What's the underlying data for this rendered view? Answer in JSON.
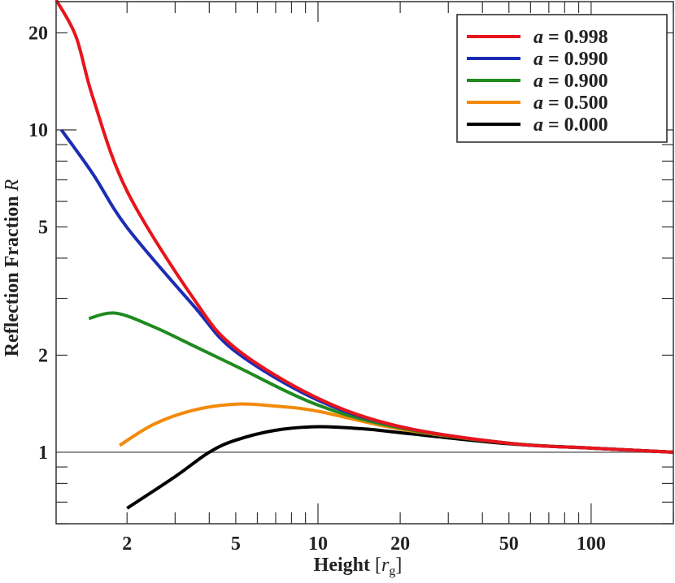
{
  "chart_data": {
    "type": "line",
    "xlabel": "Height [r_g]",
    "xlabel_main": "Height ",
    "xlabel_sym": "r",
    "xlabel_sub": "g",
    "ylabel": "Reflection Fraction R",
    "ylabel_main": "Reflection Fraction ",
    "ylabel_sym": "R",
    "xscale": "log",
    "yscale": "log",
    "xlim": [
      1.1,
      200
    ],
    "ylim": [
      0.6,
      25
    ],
    "xticks": [
      2,
      5,
      10,
      20,
      50,
      100
    ],
    "xtick_labels": [
      "2",
      "5",
      "10",
      "20",
      "50",
      "100"
    ],
    "yticks": [
      1,
      2,
      5,
      10,
      20
    ],
    "ytick_labels": [
      "1",
      "2",
      "5",
      "10",
      "20"
    ],
    "reference_line": {
      "y": 1,
      "color": "#888888"
    },
    "grid": false,
    "legend_position": "top-right",
    "series": [
      {
        "name": "a = 0.998",
        "label_sym": "a",
        "label_val": "= 0.998",
        "color": "#e8141c",
        "x": [
          1.1,
          1.3,
          1.5,
          2,
          3.5,
          5,
          10,
          20,
          50,
          100,
          200
        ],
        "y": [
          25.3,
          19.5,
          12.6,
          6.46,
          3.0,
          2.1,
          1.47,
          1.2,
          1.066,
          1.03,
          1.0
        ]
      },
      {
        "name": "a = 0.990",
        "label_sym": "a",
        "label_val": "= 0.990",
        "color": "#1c2db4",
        "x": [
          1.15,
          1.5,
          2,
          3.5,
          5,
          10,
          20,
          50,
          100,
          200
        ],
        "y": [
          10,
          7.3,
          4.98,
          2.85,
          2.05,
          1.45,
          1.2,
          1.066,
          1.03,
          1.0
        ]
      },
      {
        "name": "a = 0.900",
        "label_sym": "a",
        "label_val": "= 0.900",
        "color": "#1f8a1f",
        "x": [
          1.45,
          1.82,
          2.5,
          3.5,
          5,
          10,
          20,
          50,
          100,
          200
        ],
        "y": [
          2.6,
          2.7,
          2.45,
          2.14,
          1.85,
          1.4,
          1.19,
          1.066,
          1.03,
          1.0
        ]
      },
      {
        "name": "a = 0.500",
        "label_sym": "a",
        "label_val": "= 0.500",
        "color": "#f28a0a",
        "x": [
          1.88,
          2.5,
          3.5,
          5,
          7,
          10,
          20,
          50,
          100,
          200
        ],
        "y": [
          1.05,
          1.22,
          1.35,
          1.41,
          1.39,
          1.34,
          1.18,
          1.066,
          1.03,
          1.0
        ]
      },
      {
        "name": "a = 0.000",
        "label_sym": "a",
        "label_val": "= 0.000",
        "color": "#000000",
        "x": [
          2.0,
          3,
          4,
          5,
          7,
          10,
          15,
          20,
          50,
          100,
          200
        ],
        "y": [
          0.67,
          0.84,
          1.0,
          1.09,
          1.17,
          1.2,
          1.18,
          1.15,
          1.062,
          1.03,
          1.0
        ]
      }
    ]
  }
}
